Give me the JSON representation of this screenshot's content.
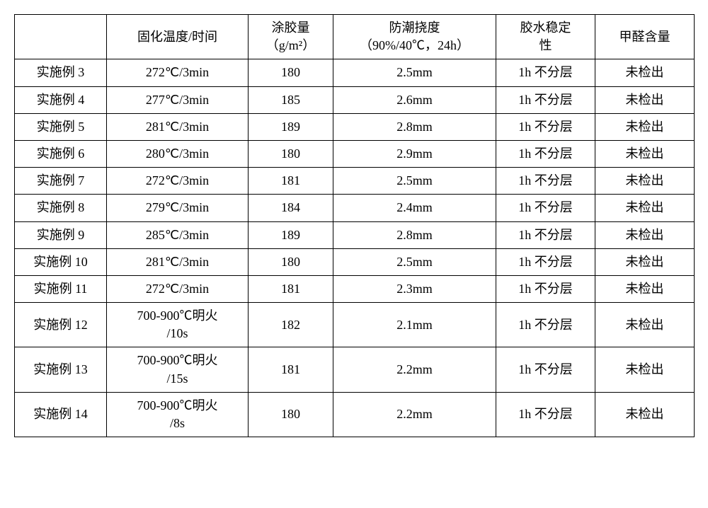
{
  "table": {
    "columns": [
      {
        "label": "",
        "class": "col0"
      },
      {
        "label": "固化温度/时间",
        "class": "col1"
      },
      {
        "label": "涂胶量\n（g/m²）",
        "class": "col2"
      },
      {
        "label": "防潮挠度\n（90%/40℃，24h）",
        "class": "col3"
      },
      {
        "label": "胶水稳定\n性",
        "class": "col4"
      },
      {
        "label": "甲醛含量",
        "class": "col5"
      }
    ],
    "rows": [
      [
        "实施例 3",
        "272℃/3min",
        "180",
        "2.5mm",
        "1h 不分层",
        "未检出"
      ],
      [
        "实施例 4",
        "277℃/3min",
        "185",
        "2.6mm",
        "1h 不分层",
        "未检出"
      ],
      [
        "实施例 5",
        "281℃/3min",
        "189",
        "2.8mm",
        "1h 不分层",
        "未检出"
      ],
      [
        "实施例 6",
        "280℃/3min",
        "180",
        "2.9mm",
        "1h 不分层",
        "未检出"
      ],
      [
        "实施例 7",
        "272℃/3min",
        "181",
        "2.5mm",
        "1h 不分层",
        "未检出"
      ],
      [
        "实施例 8",
        "279℃/3min",
        "184",
        "2.4mm",
        "1h 不分层",
        "未检出"
      ],
      [
        "实施例 9",
        "285℃/3min",
        "189",
        "2.8mm",
        "1h 不分层",
        "未检出"
      ],
      [
        "实施例 10",
        "281℃/3min",
        "180",
        "2.5mm",
        "1h 不分层",
        "未检出"
      ],
      [
        "实施例 11",
        "272℃/3min",
        "181",
        "2.3mm",
        "1h 不分层",
        "未检出"
      ],
      [
        "实施例 12",
        "700-900℃明火\n/10s",
        "182",
        "2.1mm",
        "1h 不分层",
        "未检出"
      ],
      [
        "实施例 13",
        "700-900℃明火\n/15s",
        "181",
        "2.2mm",
        "1h 不分层",
        "未检出"
      ],
      [
        "实施例 14",
        "700-900℃明火\n/8s",
        "180",
        "2.2mm",
        "1h 不分层",
        "未检出"
      ]
    ]
  }
}
